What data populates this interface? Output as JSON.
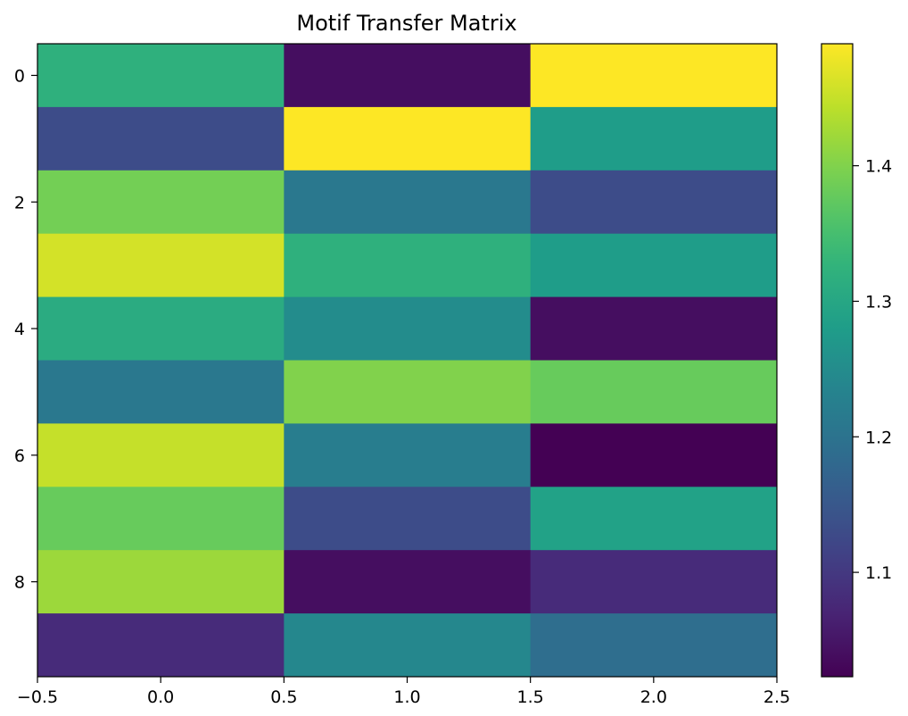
{
  "chart_data": {
    "type": "heatmap",
    "title": "Motif Transfer Matrix",
    "xlabel": "",
    "ylabel": "",
    "colormap": "viridis",
    "color_range": [
      1.023,
      1.49
    ],
    "x_centers": [
      0,
      1,
      2
    ],
    "y_centers": [
      0,
      1,
      2,
      3,
      4,
      5,
      6,
      7,
      8,
      9
    ],
    "xlim": [
      -0.5,
      2.5
    ],
    "ylim": [
      9.5,
      -0.5
    ],
    "x_ticks": [
      -0.5,
      0.0,
      0.5,
      1.0,
      1.5,
      2.0,
      2.5
    ],
    "x_tick_labels": [
      "−0.5",
      "0.0",
      "0.5",
      "1.0",
      "1.5",
      "2.0",
      "2.5"
    ],
    "y_ticks": [
      0,
      2,
      4,
      6,
      8
    ],
    "y_tick_labels": [
      "0",
      "2",
      "4",
      "6",
      "8"
    ],
    "colorbar_ticks": [
      1.1,
      1.2,
      1.3,
      1.4
    ],
    "colorbar_tick_labels": [
      "1.1",
      "1.2",
      "1.3",
      "1.4"
    ],
    "values": [
      [
        1.32,
        1.04,
        1.49
      ],
      [
        1.13,
        1.49,
        1.28
      ],
      [
        1.39,
        1.21,
        1.13
      ],
      [
        1.46,
        1.32,
        1.28
      ],
      [
        1.31,
        1.25,
        1.04
      ],
      [
        1.21,
        1.4,
        1.38
      ],
      [
        1.45,
        1.22,
        1.023
      ],
      [
        1.38,
        1.13,
        1.29
      ],
      [
        1.42,
        1.04,
        1.08
      ],
      [
        1.08,
        1.24,
        1.19
      ]
    ],
    "grid": false
  }
}
